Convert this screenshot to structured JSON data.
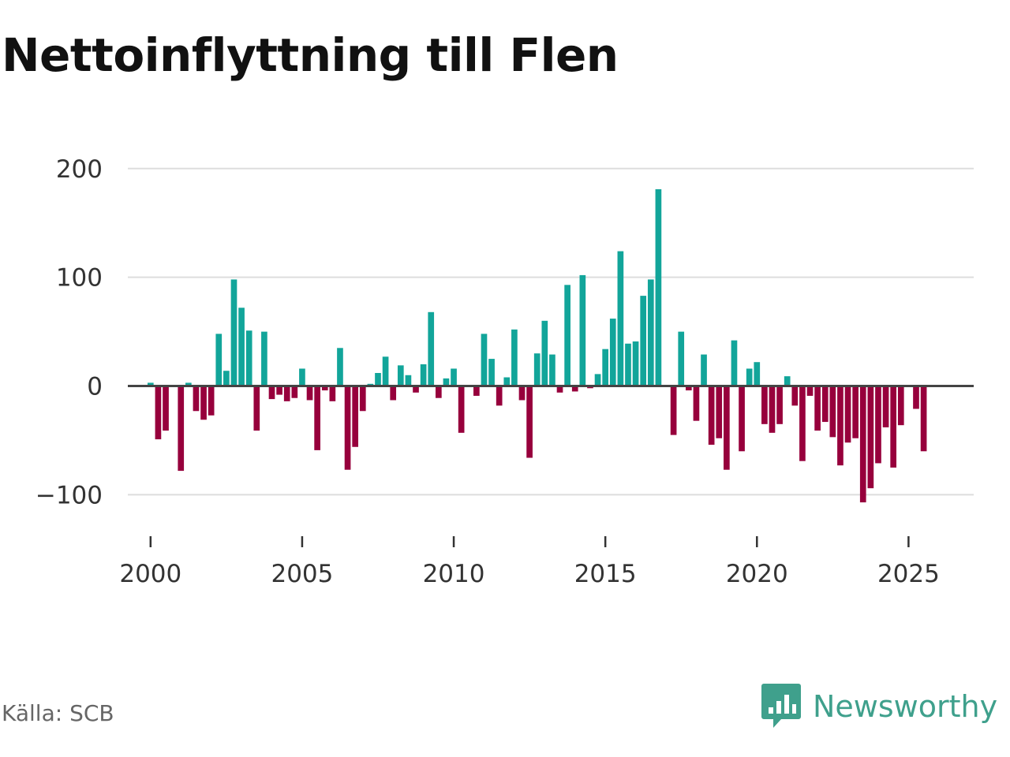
{
  "title": "Nettoinflyttning till Flen",
  "source": "Källa: SCB",
  "brand": {
    "name": "Newsworthy",
    "icon": "newsworthy-logo-icon",
    "color": "#3fa08c"
  },
  "colors": {
    "positive": "#12a59a",
    "negative": "#97003c",
    "grid": "#dddddd",
    "zero_line": "#444444"
  },
  "chart_data": {
    "type": "bar",
    "title": "Nettoinflyttning till Flen",
    "xlabel": "",
    "ylabel": "",
    "frequency": "quarterly",
    "ylim": [
      -120,
      210
    ],
    "yticks": [
      200,
      100,
      0,
      -100
    ],
    "ytick_labels": [
      "200",
      "100",
      "0",
      "−100"
    ],
    "xlim": [
      1999.25,
      2027.15
    ],
    "xticks": [
      2000,
      2005,
      2010,
      2015,
      2020,
      2025
    ],
    "xtick_labels": [
      "2000",
      "2005",
      "2010",
      "2015",
      "2020",
      "2025"
    ],
    "x_start": 2000.0,
    "x_step": 0.25,
    "values": [
      3,
      -49,
      -41,
      0,
      -78,
      3,
      -23,
      -31,
      -27,
      48,
      14,
      98,
      72,
      51,
      -41,
      50,
      -12,
      -8,
      -14,
      -11,
      16,
      -13,
      -59,
      -4,
      -14,
      35,
      -77,
      -56,
      -23,
      2,
      12,
      27,
      -13,
      19,
      10,
      -6,
      20,
      68,
      -11,
      7,
      16,
      -43,
      0,
      -9,
      48,
      25,
      -18,
      8,
      52,
      -13,
      -66,
      30,
      60,
      29,
      -6,
      93,
      -5,
      102,
      -2,
      11,
      34,
      62,
      124,
      39,
      41,
      83,
      98,
      181,
      0,
      -45,
      50,
      -4,
      -32,
      29,
      -54,
      -48,
      -77,
      42,
      -60,
      16,
      22,
      -35,
      -43,
      -35,
      9,
      -18,
      -69,
      -9,
      -41,
      -33,
      -47,
      -73,
      -52,
      -48,
      -107,
      -94,
      -71,
      -38,
      -75,
      -36,
      0,
      -21,
      -60
    ]
  }
}
